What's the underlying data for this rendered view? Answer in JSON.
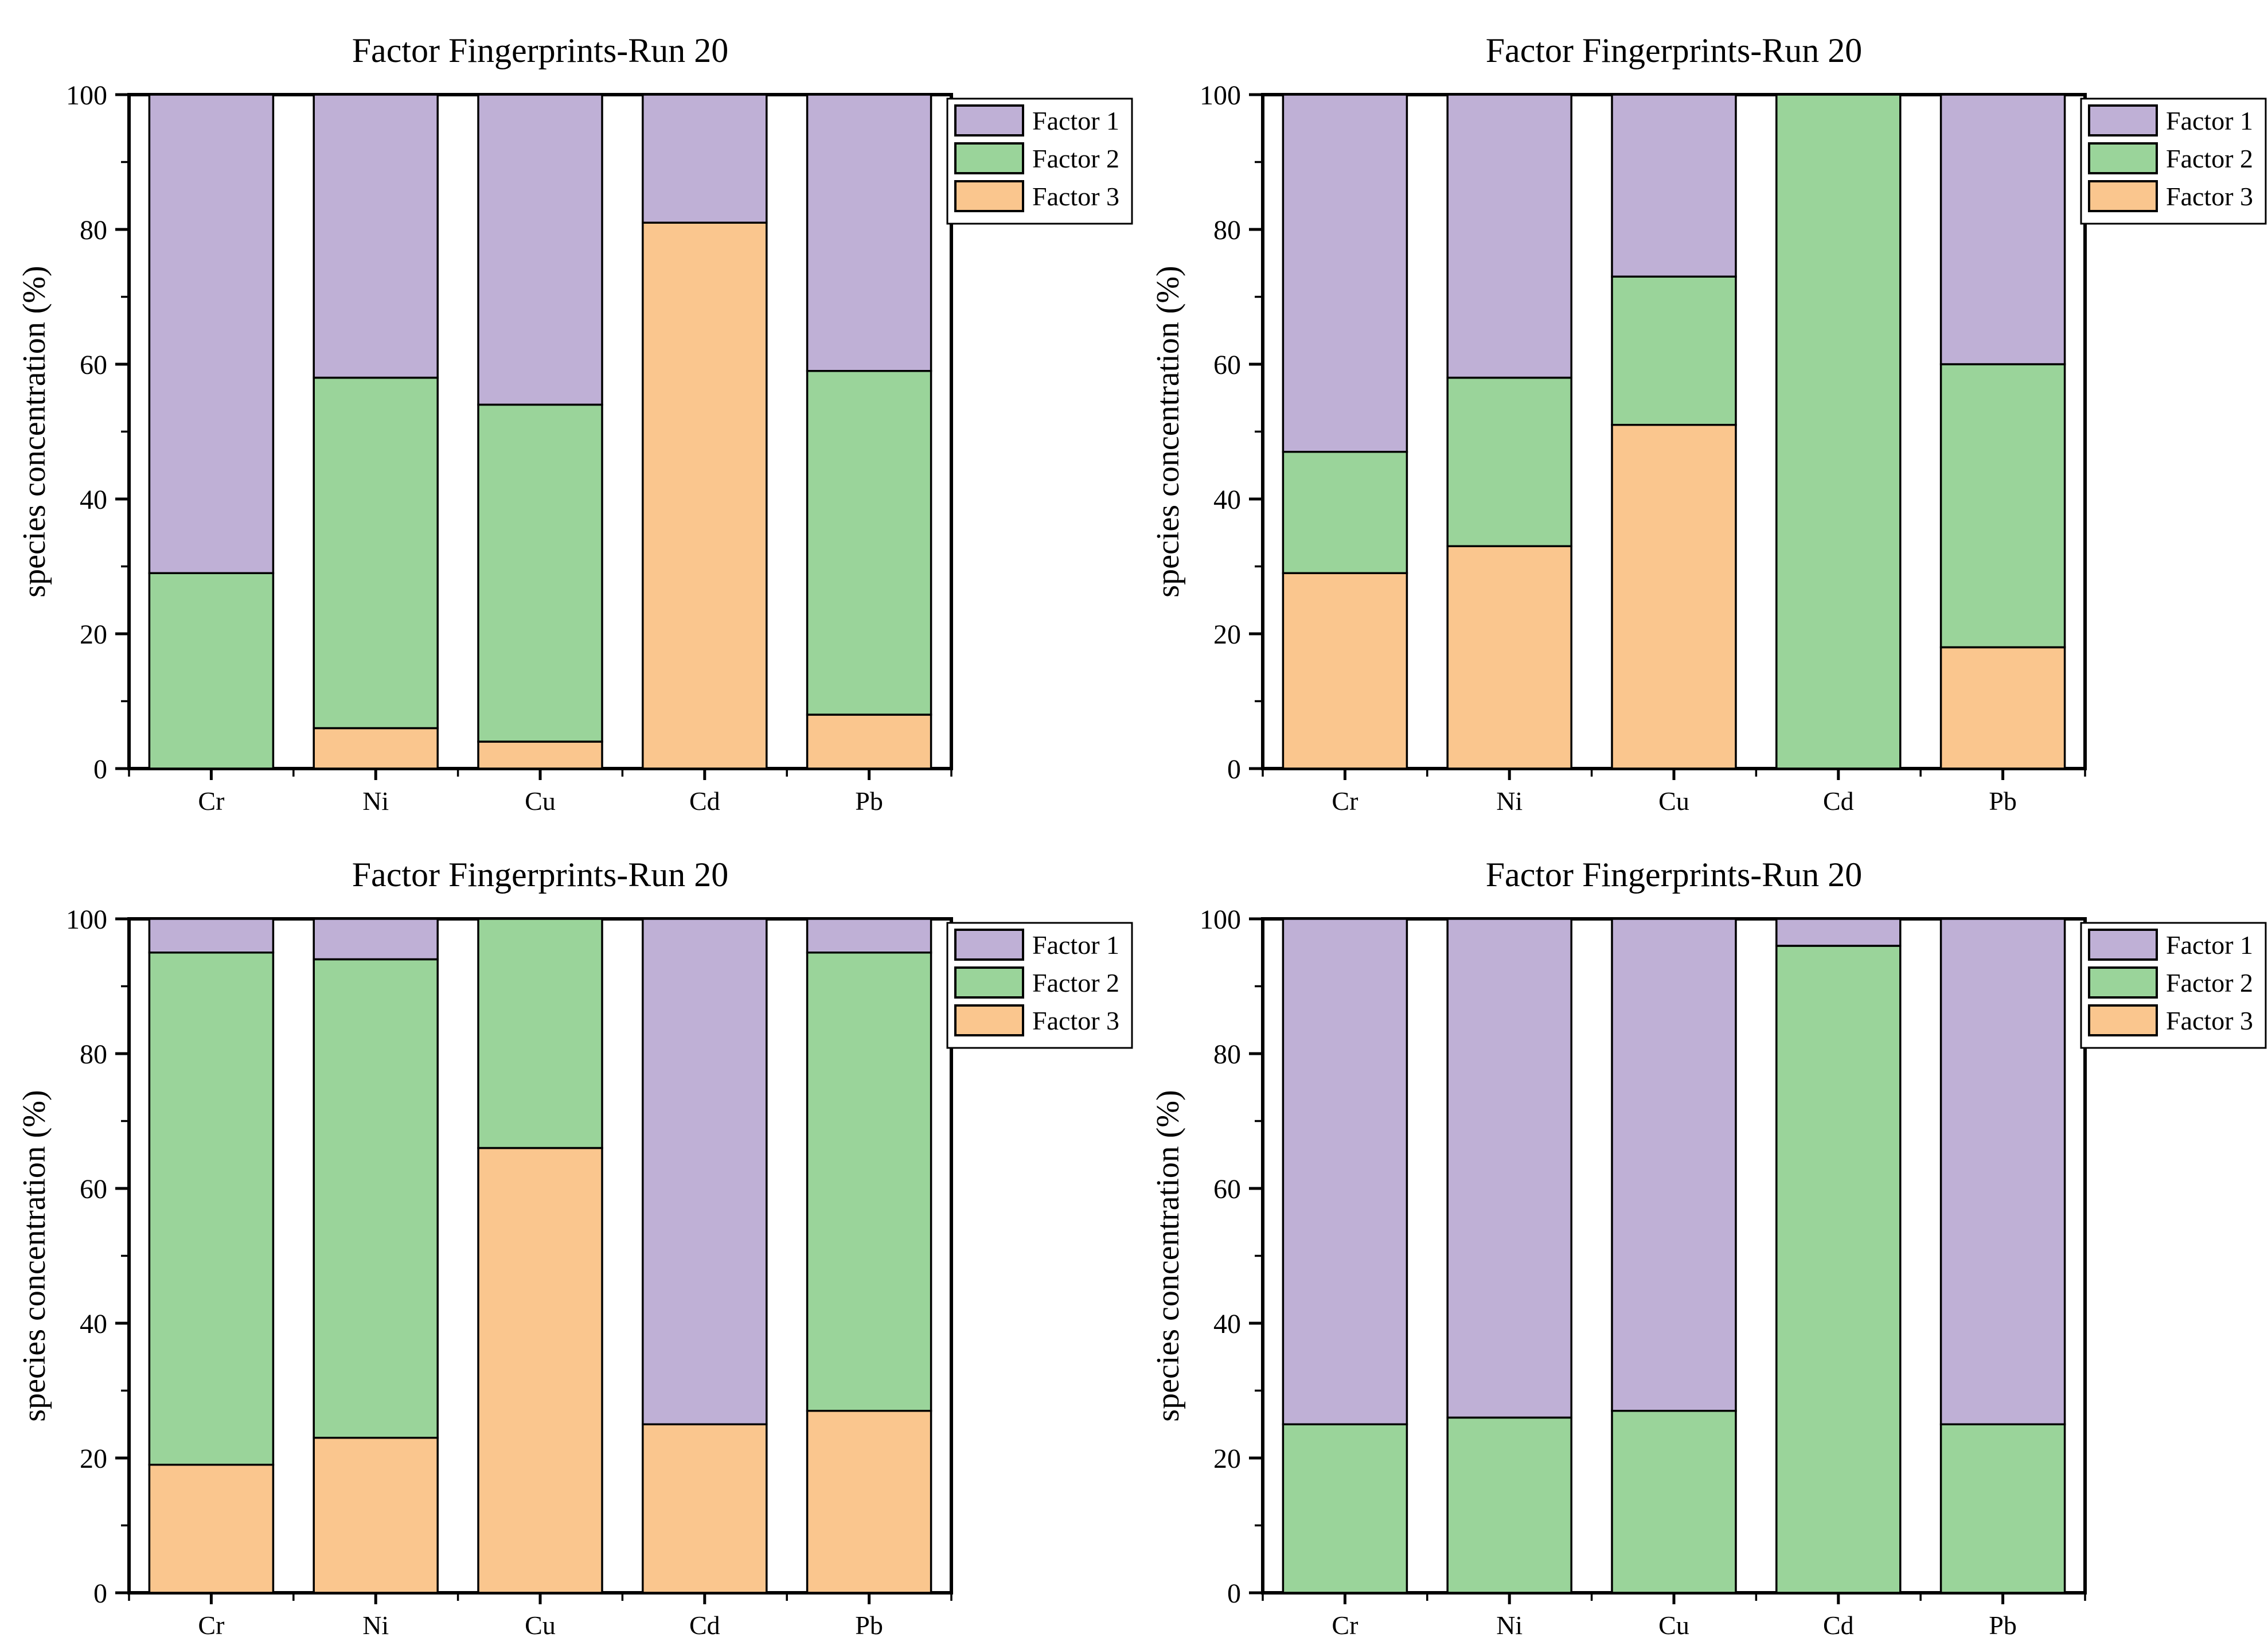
{
  "page": {
    "background": "#ffffff"
  },
  "palette": {
    "factor1": "#BFB0D6",
    "factor2": "#9AD49A",
    "factor3": "#FAC68E",
    "stroke": "#000000",
    "plot_background": "#FFFFFF"
  },
  "chart_data": [
    {
      "type": "bar",
      "stacked": true,
      "position": "top-left",
      "title": "Factor Fingerprints-Run 20",
      "xlabel": "",
      "ylabel": "species concentration (%)",
      "ylim": [
        0,
        100
      ],
      "yticks": [
        "0",
        "20",
        "40",
        "60",
        "80",
        "100"
      ],
      "minor_yticks": [
        10,
        30,
        50,
        70,
        90
      ],
      "grid": false,
      "categories": [
        "Cr",
        "Ni",
        "Cu",
        "Cd",
        "Pb"
      ],
      "legend": {
        "position": "top-right",
        "entries": [
          {
            "label": "Factor 1",
            "color_key": "factor1"
          },
          {
            "label": "Factor 2",
            "color_key": "factor2"
          },
          {
            "label": "Factor 3",
            "color_key": "factor3"
          }
        ]
      },
      "stack_order_bottom_to_top": [
        "Factor 3",
        "Factor 2",
        "Factor 1"
      ],
      "series": [
        {
          "name": "Factor 1",
          "color_key": "factor1",
          "values": [
            71,
            42,
            46,
            19,
            41
          ]
        },
        {
          "name": "Factor 2",
          "color_key": "factor2",
          "values": [
            29,
            52,
            50,
            0,
            51
          ]
        },
        {
          "name": "Factor 3",
          "color_key": "factor3",
          "values": [
            0,
            6,
            4,
            81,
            8
          ]
        }
      ]
    },
    {
      "type": "bar",
      "stacked": true,
      "position": "top-right",
      "title": "Factor Fingerprints-Run 20",
      "xlabel": "",
      "ylabel": "species concentration (%)",
      "ylim": [
        0,
        100
      ],
      "yticks": [
        "0",
        "20",
        "40",
        "60",
        "80",
        "100"
      ],
      "minor_yticks": [
        10,
        30,
        50,
        70,
        90
      ],
      "grid": false,
      "categories": [
        "Cr",
        "Ni",
        "Cu",
        "Cd",
        "Pb"
      ],
      "legend": {
        "position": "top-right",
        "entries": [
          {
            "label": "Factor 1",
            "color_key": "factor1"
          },
          {
            "label": "Factor 2",
            "color_key": "factor2"
          },
          {
            "label": "Factor 3",
            "color_key": "factor3"
          }
        ]
      },
      "stack_order_bottom_to_top": [
        "Factor 3",
        "Factor 2",
        "Factor 1"
      ],
      "series": [
        {
          "name": "Factor 1",
          "color_key": "factor1",
          "values": [
            53,
            42,
            27,
            0,
            40
          ]
        },
        {
          "name": "Factor 2",
          "color_key": "factor2",
          "values": [
            18,
            25,
            22,
            100,
            42
          ]
        },
        {
          "name": "Factor 3",
          "color_key": "factor3",
          "values": [
            29,
            33,
            51,
            0,
            18
          ]
        }
      ]
    },
    {
      "type": "bar",
      "stacked": true,
      "position": "bottom-left",
      "title": "Factor Fingerprints-Run 20",
      "xlabel": "",
      "ylabel": "species concentration (%)",
      "ylim": [
        0,
        100
      ],
      "yticks": [
        "0",
        "20",
        "40",
        "60",
        "80",
        "100"
      ],
      "minor_yticks": [
        10,
        30,
        50,
        70,
        90
      ],
      "grid": false,
      "categories": [
        "Cr",
        "Ni",
        "Cu",
        "Cd",
        "Pb"
      ],
      "legend": {
        "position": "top-right",
        "entries": [
          {
            "label": "Factor 1",
            "color_key": "factor1"
          },
          {
            "label": "Factor 2",
            "color_key": "factor2"
          },
          {
            "label": "Factor 3",
            "color_key": "factor3"
          }
        ]
      },
      "stack_order_bottom_to_top": [
        "Factor 3",
        "Factor 2",
        "Factor 1"
      ],
      "series": [
        {
          "name": "Factor 1",
          "color_key": "factor1",
          "values": [
            5,
            6,
            0,
            75,
            5
          ]
        },
        {
          "name": "Factor 2",
          "color_key": "factor2",
          "values": [
            76,
            71,
            34,
            0,
            68
          ]
        },
        {
          "name": "Factor 3",
          "color_key": "factor3",
          "values": [
            19,
            23,
            66,
            25,
            27
          ]
        }
      ]
    },
    {
      "type": "bar",
      "stacked": true,
      "position": "bottom-right",
      "title": "Factor Fingerprints-Run 20",
      "xlabel": "",
      "ylabel": "species concentration (%)",
      "ylim": [
        0,
        100
      ],
      "yticks": [
        "0",
        "20",
        "40",
        "60",
        "80",
        "100"
      ],
      "minor_yticks": [
        10,
        30,
        50,
        70,
        90
      ],
      "grid": false,
      "categories": [
        "Cr",
        "Ni",
        "Cu",
        "Cd",
        "Pb"
      ],
      "legend": {
        "position": "top-right",
        "entries": [
          {
            "label": "Factor 1",
            "color_key": "factor1"
          },
          {
            "label": "Factor 2",
            "color_key": "factor2"
          },
          {
            "label": "Factor 3",
            "color_key": "factor3"
          }
        ]
      },
      "stack_order_bottom_to_top": [
        "Factor 3",
        "Factor 2",
        "Factor 1"
      ],
      "series": [
        {
          "name": "Factor 1",
          "color_key": "factor1",
          "values": [
            75,
            74,
            73,
            4,
            75
          ]
        },
        {
          "name": "Factor 2",
          "color_key": "factor2",
          "values": [
            25,
            26,
            27,
            96,
            25
          ]
        },
        {
          "name": "Factor 3",
          "color_key": "factor3",
          "values": [
            0,
            0,
            0,
            0,
            0
          ]
        }
      ]
    }
  ]
}
